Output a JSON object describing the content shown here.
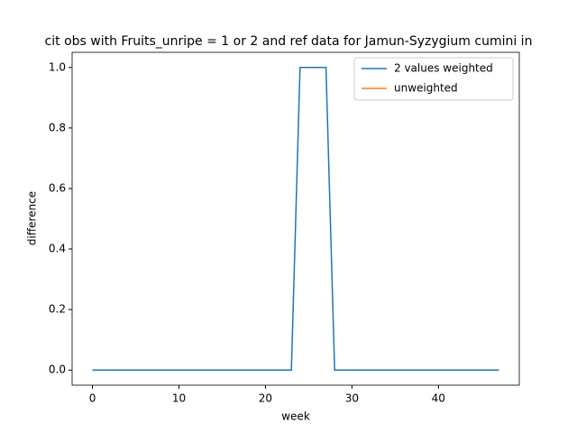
{
  "chart_data": {
    "type": "line",
    "title": "cit obs with Fruits_unripe = 1 or 2 and ref data for Jamun-Syzygium cumini in",
    "xlabel": "week",
    "ylabel": "difference",
    "x": [
      0,
      1,
      2,
      3,
      4,
      5,
      6,
      7,
      8,
      9,
      10,
      11,
      12,
      13,
      14,
      15,
      16,
      17,
      18,
      19,
      20,
      21,
      22,
      23,
      24,
      25,
      26,
      27,
      28,
      29,
      30,
      31,
      32,
      33,
      34,
      35,
      36,
      37,
      38,
      39,
      40,
      41,
      42,
      43,
      44,
      45,
      46,
      47
    ],
    "series": [
      {
        "name": "2 values weighted",
        "color": "#1f77b4",
        "values": [
          0,
          0,
          0,
          0,
          0,
          0,
          0,
          0,
          0,
          0,
          0,
          0,
          0,
          0,
          0,
          0,
          0,
          0,
          0,
          0,
          0,
          0,
          0,
          0,
          1,
          1,
          1,
          1,
          0,
          0,
          0,
          0,
          0,
          0,
          0,
          0,
          0,
          0,
          0,
          0,
          0,
          0,
          0,
          0,
          0,
          0,
          0,
          0
        ]
      },
      {
        "name": "unweighted",
        "color": "#ff7f0e",
        "values": [
          null,
          null,
          null,
          null,
          null,
          null,
          null,
          null,
          null,
          null,
          null,
          null,
          null,
          null,
          null,
          null,
          null,
          null,
          null,
          null,
          null,
          null,
          null,
          null,
          null,
          null,
          null,
          null,
          null,
          null,
          null,
          null,
          null,
          null,
          null,
          null,
          null,
          null,
          null,
          null,
          null,
          null,
          null,
          null,
          null,
          null,
          null,
          null
        ]
      }
    ],
    "xlim": [
      -2.35,
      49.35
    ],
    "xticks": [
      0,
      10,
      20,
      30,
      40
    ],
    "ylim": [
      -0.05,
      1.05
    ],
    "yticks": [
      {
        "value": 0,
        "label": "0.0"
      },
      {
        "value": 0.2,
        "label": "0.2"
      },
      {
        "value": 0.4,
        "label": "0.4"
      },
      {
        "value": 0.6,
        "label": "0.6"
      },
      {
        "value": 0.8,
        "label": "0.8"
      },
      {
        "value": 1,
        "label": "1.0"
      }
    ],
    "legend": "upper right"
  }
}
